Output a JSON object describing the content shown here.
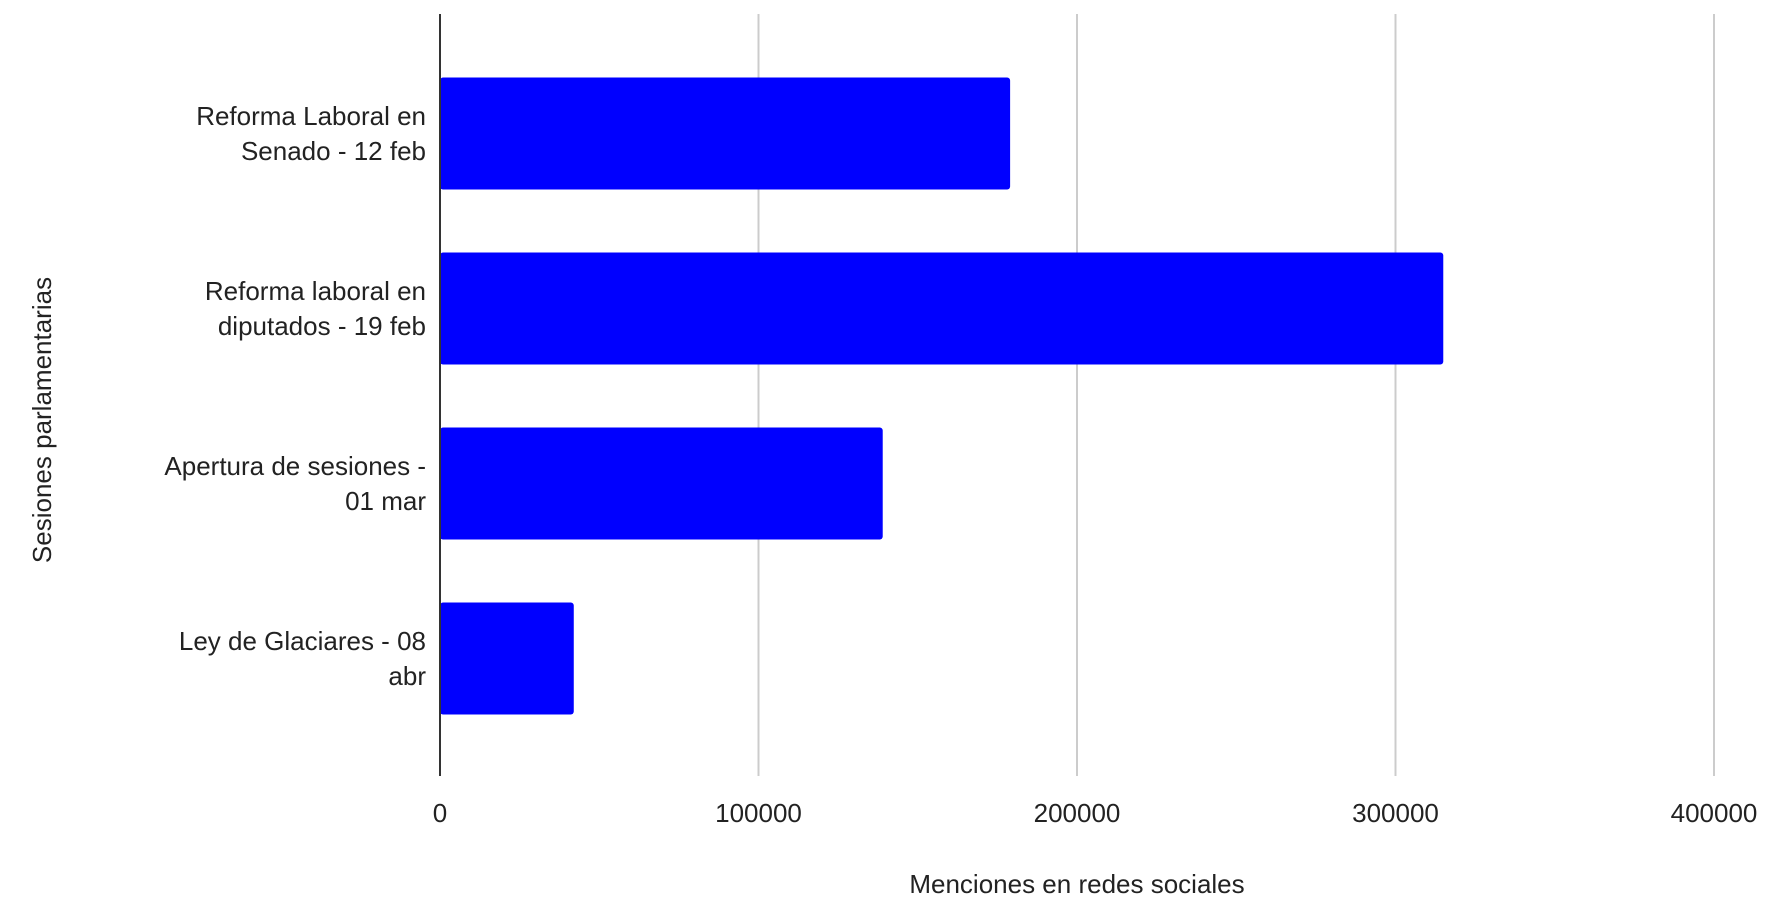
{
  "chart_data": {
    "type": "bar",
    "orientation": "horizontal",
    "categories": [
      "Reforma Laboral en Senado - 12 feb",
      "Reforma laboral en diputados - 19 feb",
      "Apertura de sesiones - 01 mar",
      "Ley de Glaciares - 08 abr"
    ],
    "category_label_lines": [
      [
        "Reforma Laboral en",
        "Senado - 12 feb"
      ],
      [
        "Reforma laboral en",
        "diputados - 19 feb"
      ],
      [
        "Apertura de sesiones -",
        "01 mar"
      ],
      [
        "Ley de Glaciares - 08",
        "abr"
      ]
    ],
    "values": [
      179000,
      315000,
      139000,
      42000
    ],
    "xlabel": "Menciones en redes sociales",
    "ylabel": "Sesiones parlamentarias",
    "xlim": [
      0,
      400000
    ],
    "xticks": [
      "0",
      "100000",
      "200000",
      "300000",
      "400000"
    ],
    "grid": true,
    "legend": "none",
    "bar_color": "#0000ff",
    "grid_color": "#cccccc",
    "axis_color": "#333333"
  }
}
